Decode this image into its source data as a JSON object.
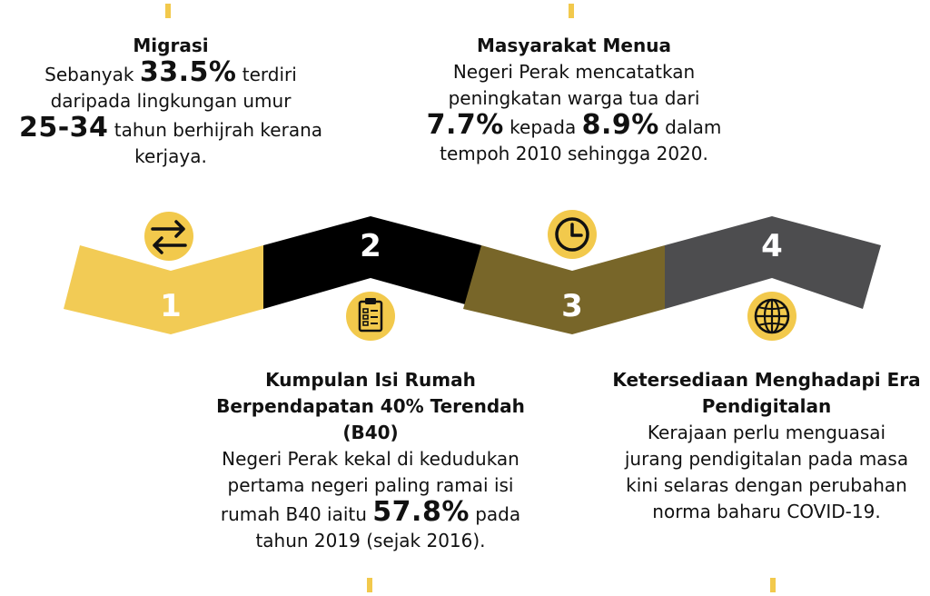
{
  "steps": [
    {
      "number": "1",
      "color": "#f2cb55",
      "icon": "swap-arrows-icon"
    },
    {
      "number": "2",
      "color": "#000000",
      "icon": "clipboard-checklist-icon"
    },
    {
      "number": "3",
      "color": "#786629",
      "icon": "clock-icon"
    },
    {
      "number": "4",
      "color": "#4d4d4f",
      "icon": "globe-icon"
    }
  ],
  "migrasi": {
    "title": "Migrasi",
    "line1_pre": "Sebanyak ",
    "line1_big": "33.5%",
    "line1_post": " terdiri",
    "line2": "daripada lingkungan umur",
    "line3_big": "25-34",
    "line3_post": " tahun  berhijrah kerana",
    "line4": "kerjaya."
  },
  "menua": {
    "title": "Masyarakat Menua",
    "line1": "Negeri Perak mencatatkan",
    "line2": "peningkatan warga tua dari",
    "line3_big1": "7.7%",
    "line3_mid": " kepada ",
    "line3_big2": "8.9%",
    "line3_post": " dalam",
    "line4": "tempoh 2010 sehingga 2020."
  },
  "b40": {
    "title1": "Kumpulan Isi Rumah",
    "title2": "Berpendapatan 40% Terendah",
    "title3": "(B40)",
    "line1": "Negeri Perak kekal di kedudukan",
    "line2": "pertama negeri paling ramai isi",
    "line3_pre": "rumah B40 iaitu  ",
    "line3_big": "57.8%",
    "line3_post": " pada",
    "line4": "tahun 2019 (sejak 2016)."
  },
  "digital": {
    "title1": "Ketersediaan Menghadapi Era",
    "title2": "Pendigitalan",
    "line1": "Kerajaan perlu menguasai",
    "line2": "jurang pendigitalan pada masa",
    "line3": "kini selaras dengan perubahan",
    "line4": "norma baharu COVID-19."
  },
  "colors": {
    "accent_yellow": "#f2c94c",
    "icon_yellow": "#f2c94c"
  }
}
